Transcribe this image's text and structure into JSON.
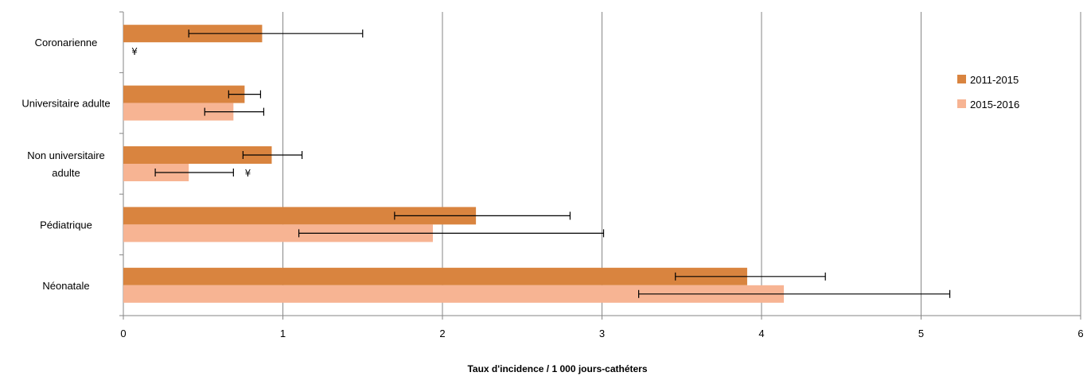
{
  "chart_data": {
    "type": "bar",
    "orientation": "horizontal",
    "title": "",
    "xlabel": "Taux d'incidence  / 1 000 jours-cathéters",
    "ylabel": "",
    "xlim": [
      0,
      6
    ],
    "xticks": [
      "0",
      "1",
      "2",
      "3",
      "4",
      "5",
      "6"
    ],
    "grid": "vertical",
    "legend_position": "right",
    "categories": [
      "Coronarienne",
      "Universitaire adulte",
      "Non universitaire adulte",
      "Pédiatrique",
      "Néonatale"
    ],
    "category_display": [
      [
        "Coronarienne"
      ],
      [
        "Universitaire adulte"
      ],
      [
        "Non universitaire",
        "adulte"
      ],
      [
        "Pédiatrique"
      ],
      [
        "Néonatale"
      ]
    ],
    "series": [
      {
        "name": "2011-2015",
        "color": "#d9843f",
        "values": [
          0.87,
          0.76,
          0.93,
          2.21,
          3.91
        ],
        "error_low": [
          0.41,
          0.66,
          0.75,
          1.7,
          3.46
        ],
        "error_high": [
          1.5,
          0.86,
          1.12,
          2.8,
          4.4
        ]
      },
      {
        "name": "2015-2016",
        "color": "#f7b493",
        "values": [
          null,
          0.69,
          0.41,
          1.94,
          4.14
        ],
        "error_low": [
          null,
          0.51,
          0.2,
          1.1,
          3.23
        ],
        "error_high": [
          null,
          0.88,
          0.69,
          3.01,
          5.18
        ]
      }
    ],
    "annotations": [
      {
        "text": "¥",
        "category": "Coronarienne",
        "series": "2015-2016",
        "x": 0.07
      },
      {
        "text": "¥",
        "category": "Non universitaire adulte",
        "series": "2015-2016",
        "x": 0.78
      }
    ]
  }
}
